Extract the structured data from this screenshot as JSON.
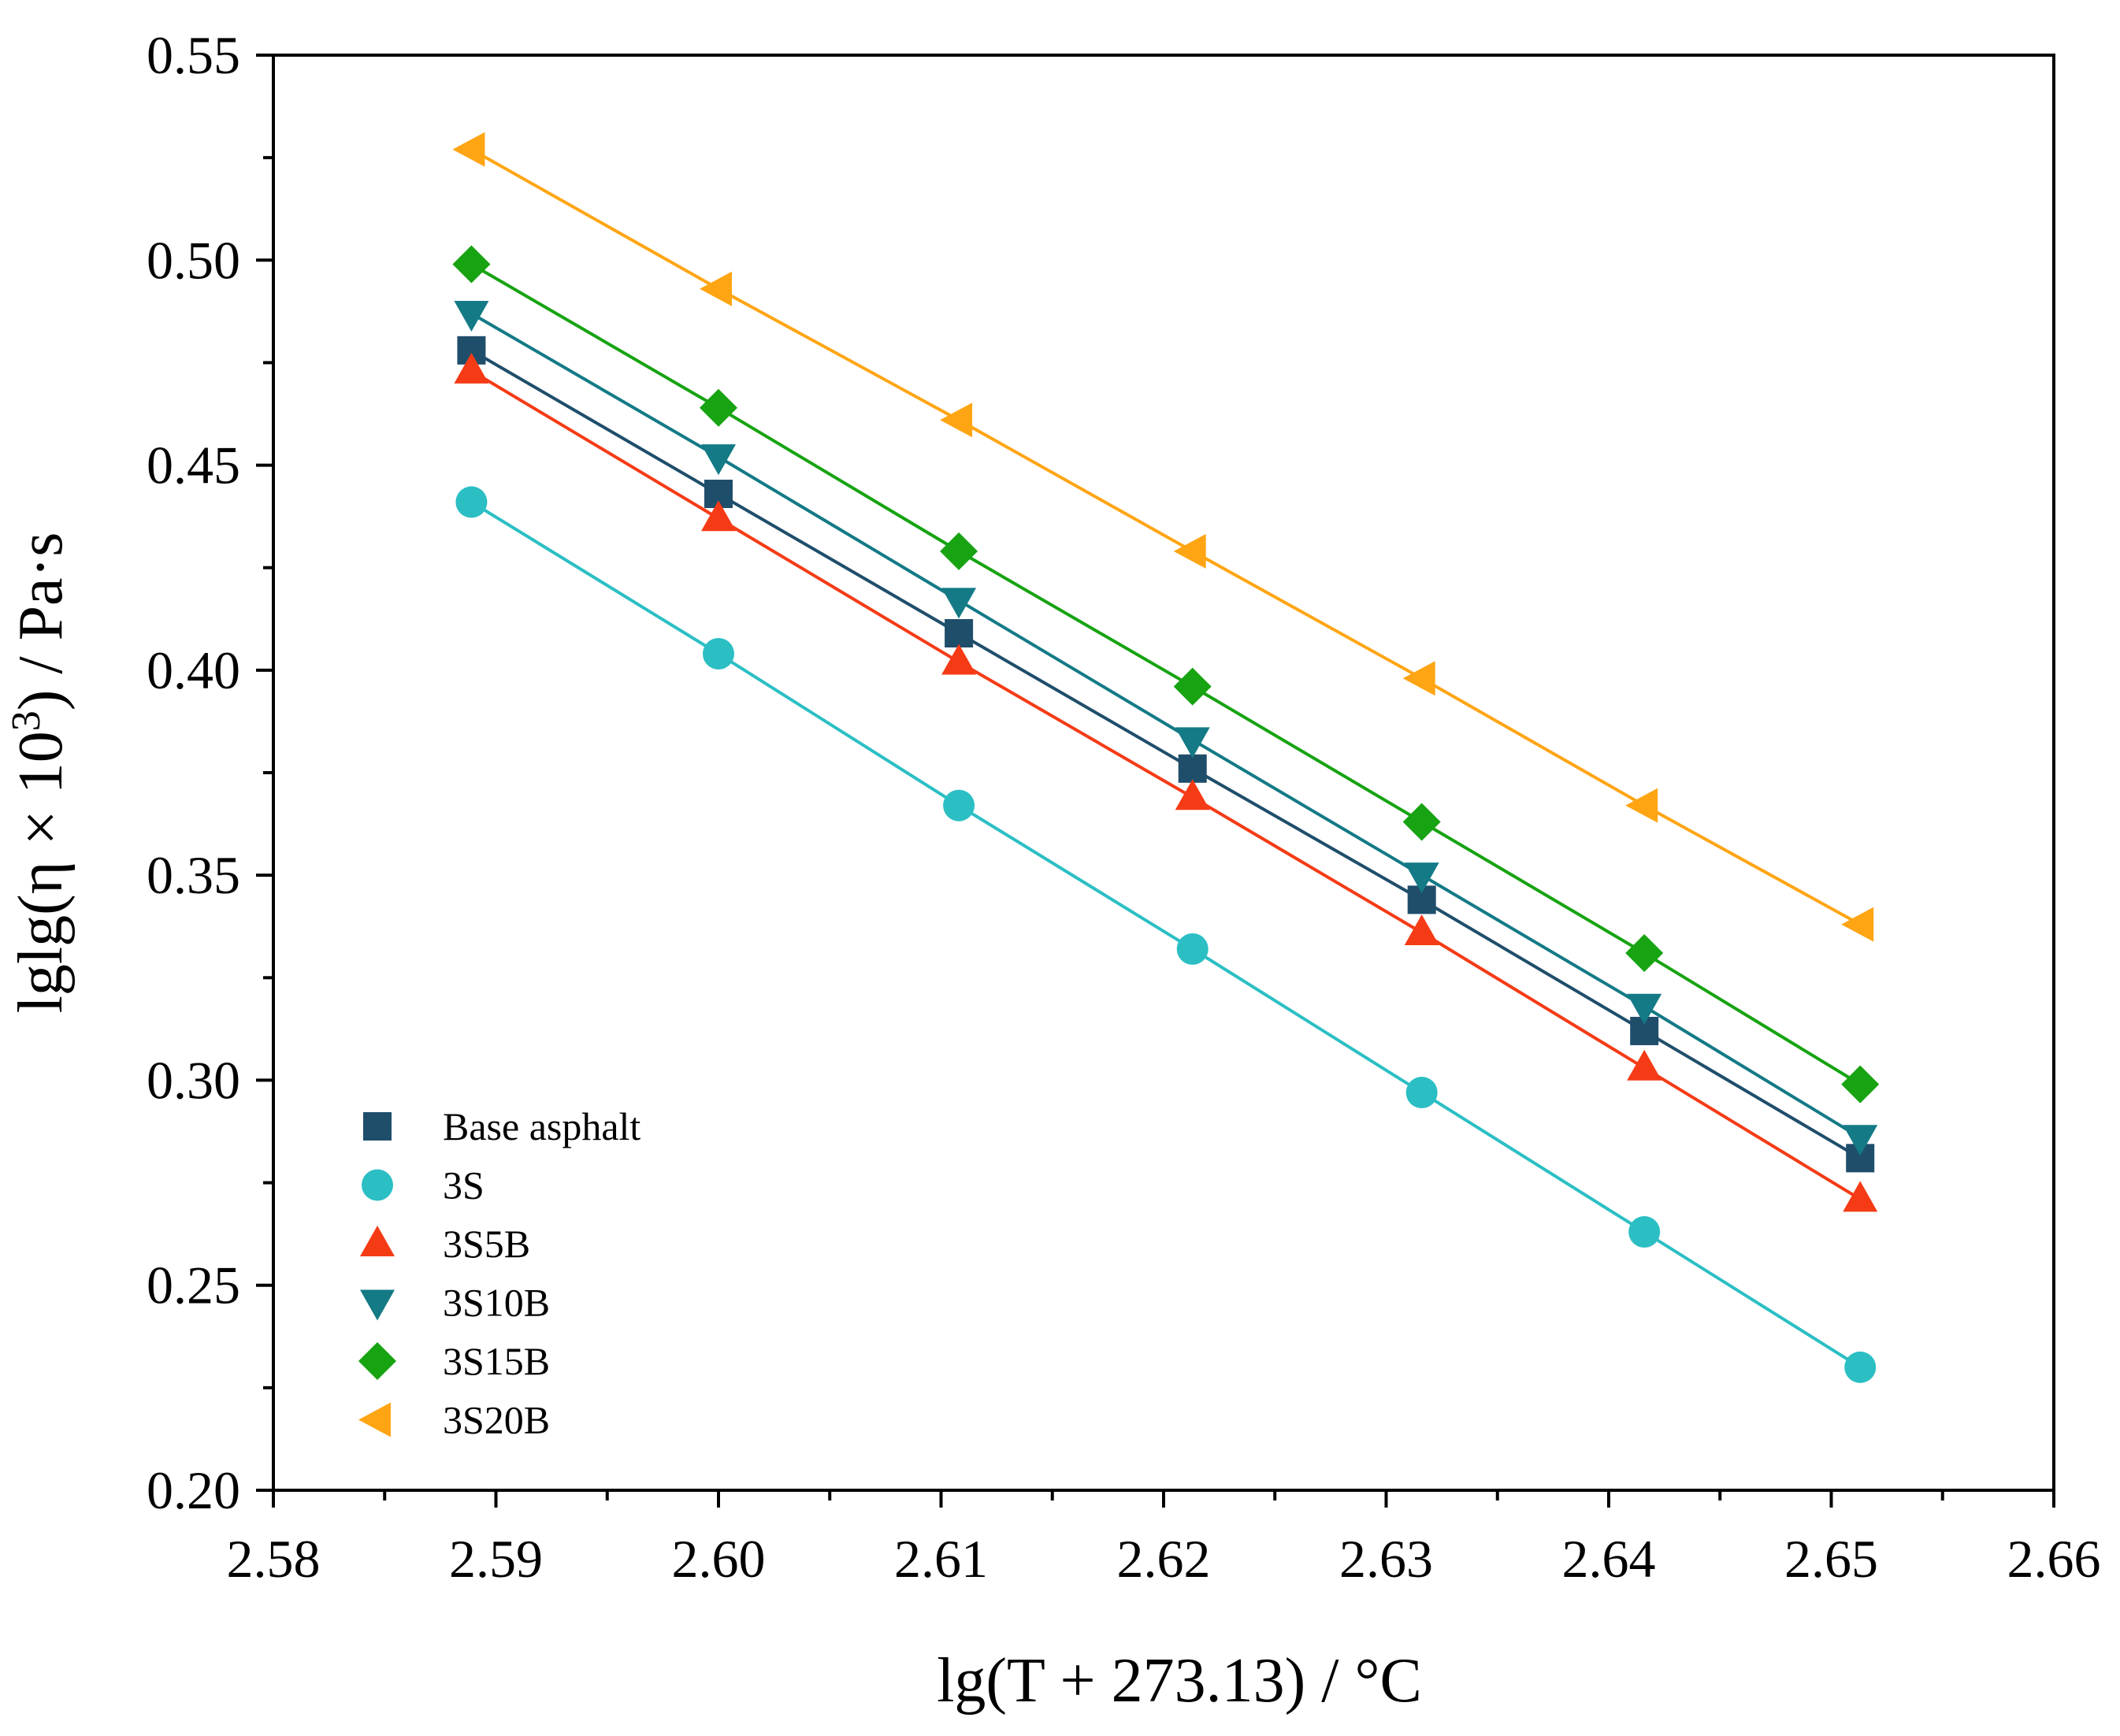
{
  "chart_data": {
    "type": "scatter",
    "title": "",
    "xlabel": "lg(T + 273.13)  /  °C",
    "ylabel_main": "lglg(η × 10",
    "ylabel_sup": "3",
    "ylabel_tail": ")  /  Pa·s",
    "xlim": [
      2.58,
      2.66
    ],
    "ylim": [
      0.2,
      0.55
    ],
    "xticks": [
      2.58,
      2.59,
      2.6,
      2.61,
      2.62,
      2.63,
      2.64,
      2.65,
      2.66
    ],
    "xtick_labels": [
      "2.58",
      "2.59",
      "2.60",
      "2.61",
      "2.62",
      "2.63",
      "2.64",
      "2.65",
      "2.66"
    ],
    "yticks": [
      0.2,
      0.25,
      0.3,
      0.35,
      0.4,
      0.45,
      0.5,
      0.55
    ],
    "ytick_labels": [
      "0.20",
      "0.25",
      "0.30",
      "0.35",
      "0.40",
      "0.45",
      "0.50",
      "0.55"
    ],
    "legend_position": "bottom-left",
    "x": [
      2.5889,
      2.6,
      2.6108,
      2.6213,
      2.6316,
      2.6416,
      2.6513
    ],
    "series": [
      {
        "name": "Base asphalt",
        "marker": "square",
        "color": "#1f4e6b",
        "values": [
          0.478,
          0.443,
          0.409,
          0.376,
          0.344,
          0.312,
          0.281
        ]
      },
      {
        "name": "3S",
        "marker": "circle",
        "color": "#2bbfc4",
        "values": [
          0.441,
          0.404,
          0.367,
          0.332,
          0.297,
          0.263,
          0.23
        ]
      },
      {
        "name": "3S5B",
        "marker": "triangle-up",
        "color": "#f53b16",
        "values": [
          0.473,
          0.437,
          0.402,
          0.369,
          0.336,
          0.303,
          0.271
        ]
      },
      {
        "name": "3S10B",
        "marker": "triangle-down",
        "color": "#137a86",
        "values": [
          0.487,
          0.452,
          0.417,
          0.383,
          0.35,
          0.318,
          0.286
        ]
      },
      {
        "name": "3S15B",
        "marker": "diamond",
        "color": "#17a312",
        "values": [
          0.499,
          0.464,
          0.429,
          0.396,
          0.363,
          0.331,
          0.299
        ]
      },
      {
        "name": "3S20B",
        "marker": "triangle-left",
        "color": "#ffa514",
        "values": [
          0.527,
          0.493,
          0.461,
          0.429,
          0.398,
          0.367,
          0.338
        ]
      }
    ]
  }
}
